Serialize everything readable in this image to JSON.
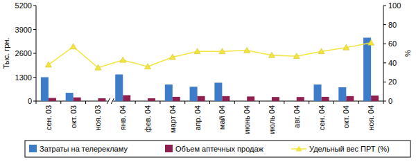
{
  "chart_data": {
    "type": "bar",
    "y_label": "Тыс. грн.",
    "y2_label": "%",
    "categories": [
      "сен. 03",
      "окт. 03",
      "ноя. 03",
      "янв. 04",
      "фев. 04",
      "март 04",
      "апр. 04",
      "май 04",
      "июнь 04",
      "июль 04",
      "авг. 04",
      "сен. 04",
      "окт. 04",
      "ноя. 04"
    ],
    "series": [
      {
        "name": "Затраты на телерекламу",
        "type": "bar",
        "color": "#3d7cc9",
        "values": [
          1300,
          450,
          0,
          1450,
          0,
          900,
          780,
          1000,
          0,
          0,
          0,
          900,
          750,
          3450
        ]
      },
      {
        "name": "Объем аптечных продаж",
        "type": "bar",
        "color": "#8e1f4f",
        "values": [
          170,
          200,
          150,
          320,
          150,
          230,
          270,
          270,
          250,
          220,
          220,
          230,
          270,
          300
        ]
      },
      {
        "name": "Удельный вес ПРТ (%)",
        "type": "line",
        "axis": "y2",
        "color": "#f3e53c",
        "marker": "triangle",
        "values": [
          38,
          57,
          35,
          43,
          36,
          46,
          52,
          52,
          53,
          48,
          47,
          52,
          56,
          61
        ]
      }
    ],
    "ylim": [
      0,
      5200
    ],
    "yticks": [
      0,
      1300,
      2600,
      3900,
      5200
    ],
    "y2lim": [
      0,
      100
    ],
    "y2ticks": [
      0,
      20,
      40,
      60,
      80,
      100
    ],
    "grid": false,
    "legend": "bottom"
  }
}
